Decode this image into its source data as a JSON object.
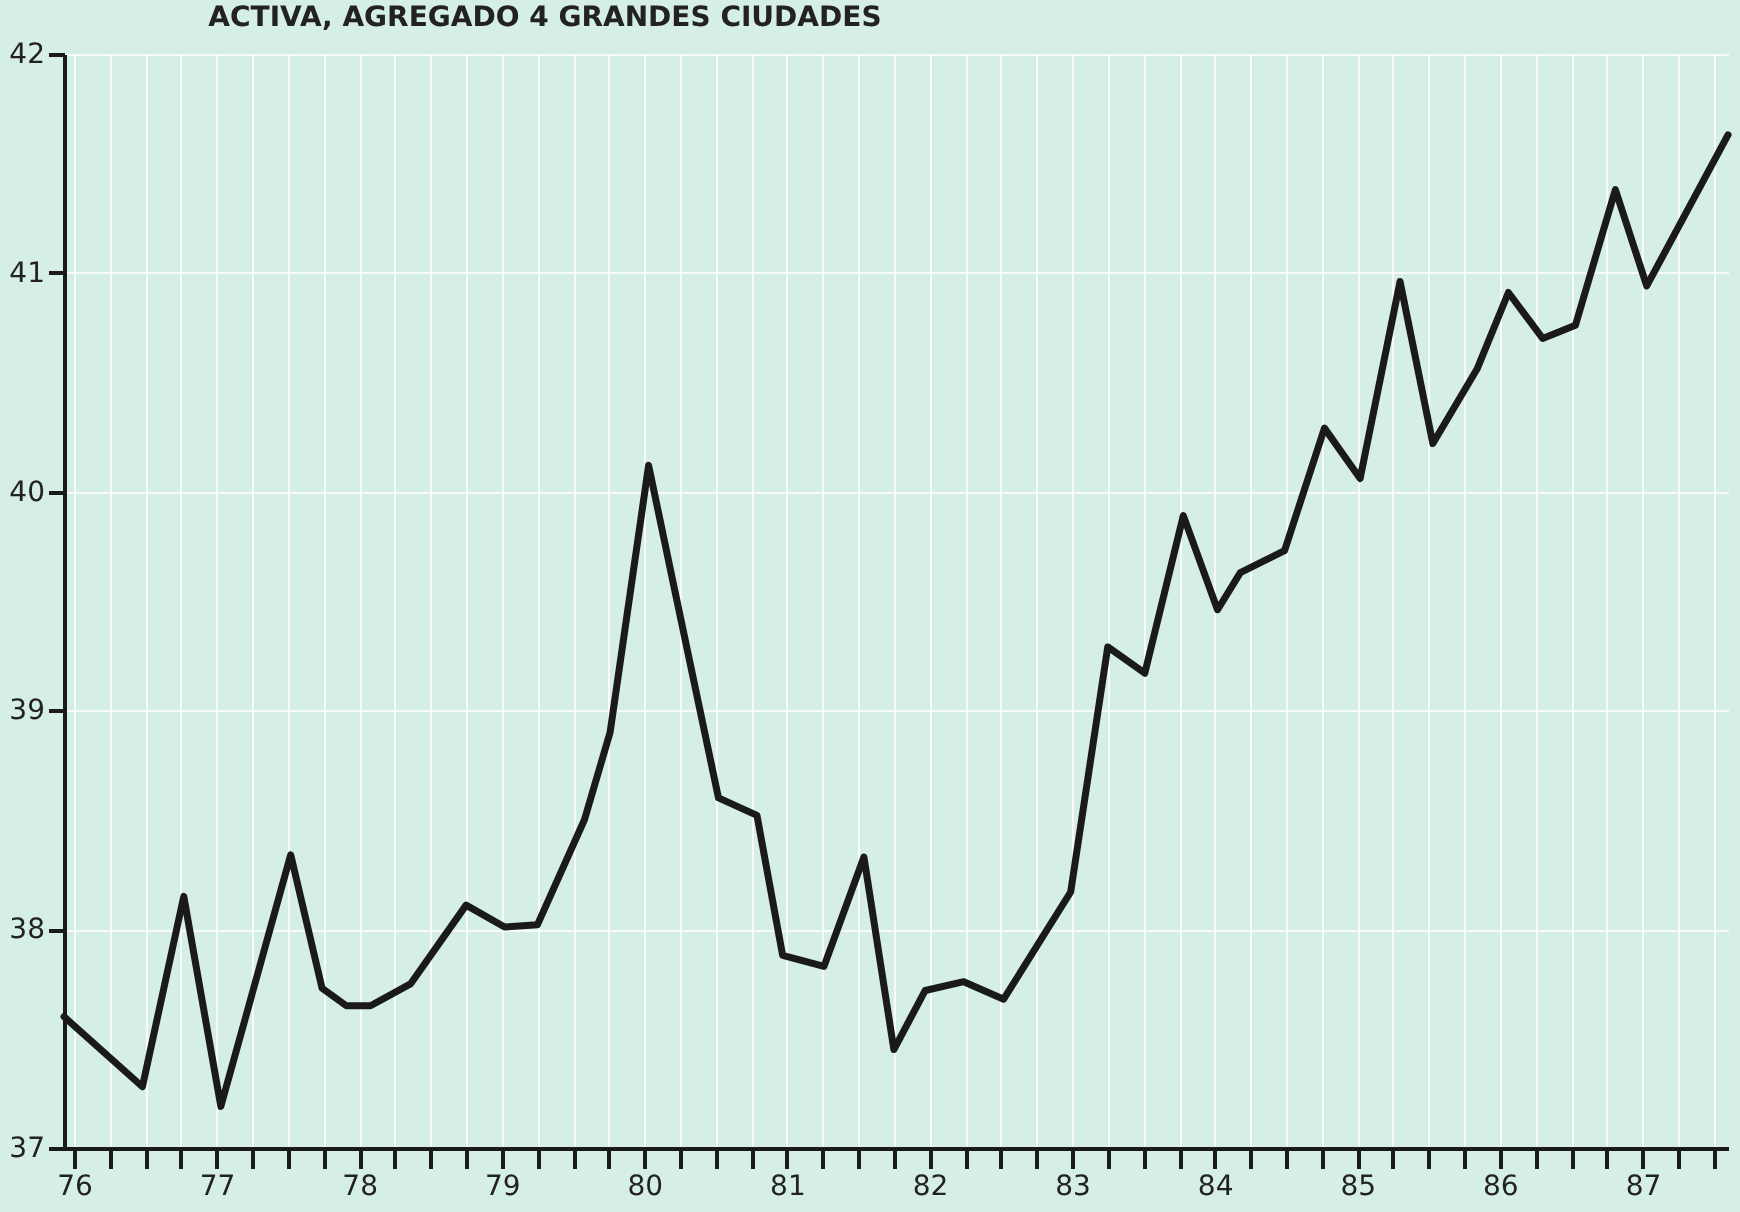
{
  "chart_data": {
    "type": "line",
    "title": "ACTIVA, AGREGADO 4 GRANDES CIUDADES",
    "x": [
      75.93,
      76.48,
      76.77,
      77.03,
      77.52,
      77.74,
      77.91,
      78.08,
      78.36,
      78.75,
      79.02,
      79.25,
      79.58,
      79.76,
      80.03,
      80.2,
      80.52,
      80.79,
      80.97,
      81.26,
      81.54,
      81.75,
      81.97,
      82.24,
      82.52,
      82.99,
      83.25,
      83.51,
      83.78,
      84.02,
      84.18,
      84.49,
      84.77,
      85.02,
      85.3,
      85.53,
      85.84,
      86.06,
      86.3,
      86.53,
      86.81,
      87.03,
      87.6
    ],
    "series": [
      {
        "color": "#1a1a1a",
        "values": [
          37.6,
          37.28,
          38.15,
          37.19,
          38.34,
          37.73,
          37.65,
          37.65,
          37.75,
          38.11,
          38.01,
          38.02,
          38.5,
          38.9,
          40.12,
          39.59,
          38.6,
          38.52,
          37.88,
          37.83,
          38.33,
          37.45,
          37.72,
          37.76,
          37.68,
          38.17,
          39.29,
          39.17,
          39.89,
          39.46,
          39.63,
          39.73,
          40.29,
          40.06,
          40.96,
          40.22,
          40.56,
          40.91,
          40.7,
          40.76,
          41.38,
          40.94,
          41.63
        ]
      }
    ],
    "xlim": [
      75.93,
      87.6
    ],
    "xticks": [
      {
        "value": 76,
        "label": "76"
      },
      {
        "value": 76.25,
        "label": null
      },
      {
        "value": 76.5,
        "label": null
      },
      {
        "value": 76.75,
        "label": null
      },
      {
        "value": 77,
        "label": "77"
      },
      {
        "value": 77.25,
        "label": null
      },
      {
        "value": 77.5,
        "label": null
      },
      {
        "value": 77.75,
        "label": null
      },
      {
        "value": 78,
        "label": "78"
      },
      {
        "value": 78.25,
        "label": null
      },
      {
        "value": 78.5,
        "label": null
      },
      {
        "value": 78.75,
        "label": null
      },
      {
        "value": 79,
        "label": "79"
      },
      {
        "value": 79.25,
        "label": null
      },
      {
        "value": 79.5,
        "label": null
      },
      {
        "value": 79.75,
        "label": null
      },
      {
        "value": 80,
        "label": "80"
      },
      {
        "value": 80.25,
        "label": null
      },
      {
        "value": 80.5,
        "label": null
      },
      {
        "value": 80.75,
        "label": null
      },
      {
        "value": 81,
        "label": "81"
      },
      {
        "value": 81.25,
        "label": null
      },
      {
        "value": 81.5,
        "label": null
      },
      {
        "value": 81.75,
        "label": null
      },
      {
        "value": 82,
        "label": "82"
      },
      {
        "value": 82.25,
        "label": null
      },
      {
        "value": 82.5,
        "label": null
      },
      {
        "value": 82.75,
        "label": null
      },
      {
        "value": 83,
        "label": "83"
      },
      {
        "value": 83.25,
        "label": null
      },
      {
        "value": 83.5,
        "label": null
      },
      {
        "value": 83.75,
        "label": null
      },
      {
        "value": 84,
        "label": "84"
      },
      {
        "value": 84.25,
        "label": null
      },
      {
        "value": 84.5,
        "label": null
      },
      {
        "value": 84.75,
        "label": null
      },
      {
        "value": 85,
        "label": "85"
      },
      {
        "value": 85.25,
        "label": null
      },
      {
        "value": 85.5,
        "label": null
      },
      {
        "value": 85.75,
        "label": null
      },
      {
        "value": 86,
        "label": "86"
      },
      {
        "value": 86.25,
        "label": null
      },
      {
        "value": 86.5,
        "label": null
      },
      {
        "value": 86.75,
        "label": null
      },
      {
        "value": 87,
        "label": "87"
      },
      {
        "value": 87.25,
        "label": null
      },
      {
        "value": 87.5,
        "label": null
      }
    ],
    "ylim": [
      37,
      42
    ],
    "yticks": [
      37,
      38,
      39,
      40,
      41,
      42
    ],
    "grid": true,
    "marker": "none",
    "line_style": "solid"
  }
}
